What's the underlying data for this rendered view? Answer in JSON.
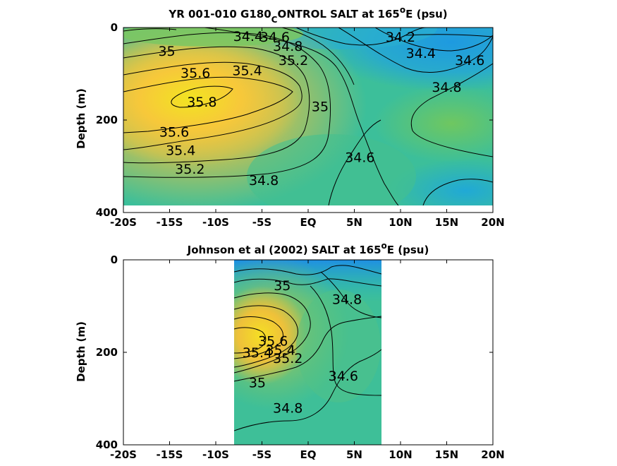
{
  "chart_data": [
    {
      "type": "heatmap",
      "title_main": "YR 001-010 G180",
      "title_sub": "C",
      "title_rest": "ONTROL SALT at 165",
      "title_sup": "o",
      "title_end": "E (psu)",
      "ylabel": "Depth (m)",
      "xlabel": "",
      "xlim": [
        -20,
        20
      ],
      "ylim": [
        0,
        400
      ],
      "y_reversed": true,
      "xticks": [
        "-20S",
        "-15S",
        "-10S",
        "-5S",
        "EQ",
        "5N",
        "10N",
        "15N",
        "20N"
      ],
      "yticks": [
        "0",
        "200",
        "400"
      ],
      "data_depth_max": 385,
      "contour_labels": [
        {
          "text": "34.4",
          "x": -6.5,
          "y": 18
        },
        {
          "text": "34.6",
          "x": -3.6,
          "y": 20
        },
        {
          "text": "34.8",
          "x": -2.2,
          "y": 40
        },
        {
          "text": "35",
          "x": -15.3,
          "y": 50
        },
        {
          "text": "35.2",
          "x": -1.6,
          "y": 70
        },
        {
          "text": "35.6",
          "x": -12.2,
          "y": 98
        },
        {
          "text": "35.4",
          "x": -6.6,
          "y": 92
        },
        {
          "text": "35.8",
          "x": -11.5,
          "y": 160
        },
        {
          "text": "35",
          "x": 1.3,
          "y": 170
        },
        {
          "text": "35.6",
          "x": -14.5,
          "y": 225
        },
        {
          "text": "35.4",
          "x": -13.8,
          "y": 265
        },
        {
          "text": "35.2",
          "x": -12.8,
          "y": 305
        },
        {
          "text": "34.8",
          "x": -4.8,
          "y": 330
        },
        {
          "text": "34.6",
          "x": 5.6,
          "y": 280
        },
        {
          "text": "34.2",
          "x": 10,
          "y": 20
        },
        {
          "text": "34.4",
          "x": 12.2,
          "y": 55
        },
        {
          "text": "34.6",
          "x": 17.5,
          "y": 70
        },
        {
          "text": "34.8",
          "x": 15,
          "y": 128
        }
      ]
    },
    {
      "type": "heatmap",
      "title_main": "Johnson et al (2002) SALT at 165",
      "title_sup": "o",
      "title_end": "E (psu)",
      "ylabel": "Depth (m)",
      "xlabel": "",
      "xlim": [
        -20,
        20
      ],
      "ylim": [
        0,
        400
      ],
      "y_reversed": true,
      "xticks": [
        "-20S",
        "-15S",
        "-10S",
        "-5S",
        "EQ",
        "5N",
        "10N",
        "15N",
        "20N"
      ],
      "yticks": [
        "0",
        "200",
        "400"
      ],
      "data_xrange": [
        -8,
        8
      ],
      "contour_labels": [
        {
          "text": "35",
          "x": -2.8,
          "y": 55
        },
        {
          "text": "34.8",
          "x": 4.2,
          "y": 85
        },
        {
          "text": "35.6",
          "x": -3.8,
          "y": 175
        },
        {
          "text": "35.4",
          "x": -3.0,
          "y": 195
        },
        {
          "text": "35.4",
          "x": -5.5,
          "y": 200
        },
        {
          "text": "35.2",
          "x": -2.2,
          "y": 212
        },
        {
          "text": "35",
          "x": -5.5,
          "y": 265
        },
        {
          "text": "34.6",
          "x": 3.8,
          "y": 250
        },
        {
          "text": "34.8",
          "x": -2.2,
          "y": 320
        }
      ]
    }
  ]
}
